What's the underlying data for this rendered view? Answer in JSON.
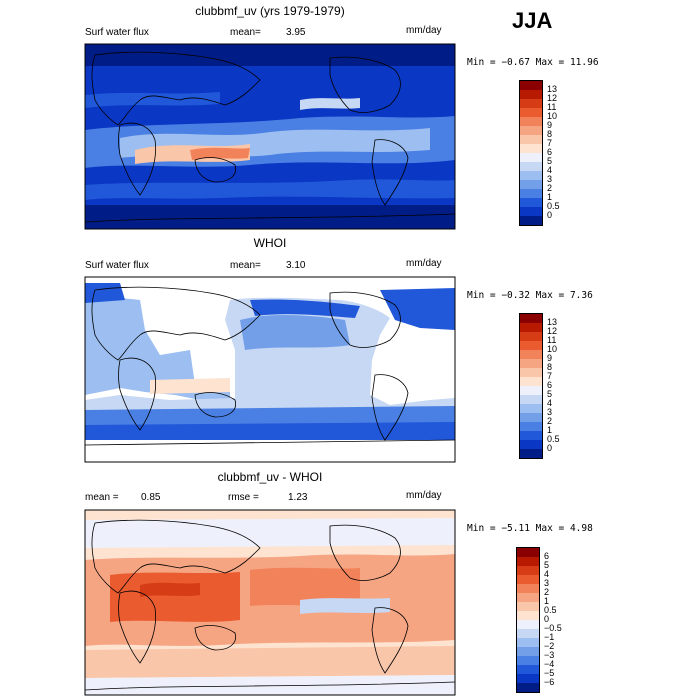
{
  "season": "JJA",
  "panels": [
    {
      "title": "clubbmf_uv (yrs 1979-1979)",
      "variable": "Surf water flux",
      "stat1_label": "mean=",
      "stat1_value": "3.95",
      "units": "mm/day",
      "minmax": "Min =  −0.67 Max =  11.96",
      "colorbar": {
        "labels": [
          "13",
          "12",
          "11",
          "10",
          "9",
          "8",
          "7",
          "6",
          "5",
          "4",
          "3",
          "2",
          "1",
          "0.5",
          "0"
        ],
        "colors": [
          "#8a0000",
          "#b71a00",
          "#d63d17",
          "#ea5b2f",
          "#f2825a",
          "#f6a583",
          "#fac6aa",
          "#fde3d0",
          "#eef1fb",
          "#c6d8f4",
          "#9cbef0",
          "#739fe9",
          "#4a7fe3",
          "#2157d9",
          "#0a37c4",
          "#001c87"
        ]
      }
    },
    {
      "title": "WHOI",
      "variable": "Surf water flux",
      "stat1_label": "mean=",
      "stat1_value": "3.10",
      "units": "mm/day",
      "minmax": "Min =  −0.32 Max =   7.36",
      "colorbar": {
        "labels": [
          "13",
          "12",
          "11",
          "10",
          "9",
          "8",
          "7",
          "6",
          "5",
          "4",
          "3",
          "2",
          "1",
          "0.5",
          "0"
        ],
        "colors": [
          "#8a0000",
          "#b71a00",
          "#d63d17",
          "#ea5b2f",
          "#f2825a",
          "#f6a583",
          "#fac6aa",
          "#fde3d0",
          "#eef1fb",
          "#c6d8f4",
          "#9cbef0",
          "#739fe9",
          "#4a7fe3",
          "#2157d9",
          "#0a37c4",
          "#001c87"
        ]
      }
    },
    {
      "title": "clubbmf_uv - WHOI",
      "stat1_label": "mean =",
      "stat1_value": "0.85",
      "stat2_label": "rmse =",
      "stat2_value": "1.23",
      "units": "mm/day",
      "minmax": "Min =  −5.11 Max =   4.98",
      "colorbar": {
        "labels": [
          "6",
          "5",
          "4",
          "3",
          "2",
          "1",
          "0.5",
          "0",
          "−0.5",
          "−1",
          "−2",
          "−3",
          "−4",
          "−5",
          "−6"
        ],
        "colors": [
          "#8a0000",
          "#b71a00",
          "#d63d17",
          "#ea5b2f",
          "#f2825a",
          "#f6a583",
          "#fac6aa",
          "#fde3d0",
          "#eef1fb",
          "#c6d8f4",
          "#9cbef0",
          "#739fe9",
          "#4a7fe3",
          "#2157d9",
          "#0a37c4",
          "#001c87"
        ]
      }
    }
  ]
}
